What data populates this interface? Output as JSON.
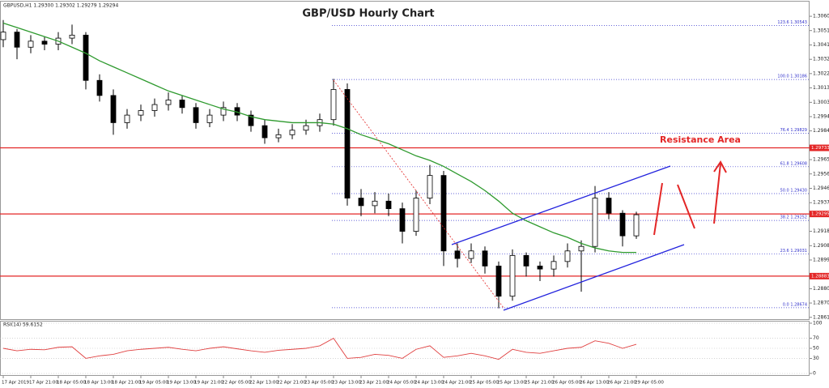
{
  "chart_data": [
    {
      "type": "candlestick",
      "title": "GBP/USD Hourly Chart",
      "header": "GBPUSD,H1  1.29300 1.29302 1.29279 1.29294",
      "annotation": "Resistance Area",
      "categories": [
        "17 Apr 2019",
        null,
        "17 Apr 21:00",
        null,
        "18 Apr 05:00",
        null,
        "18 Apr 13:00",
        null,
        "18 Apr 21:00",
        null,
        "19 Apr 05:00",
        null,
        "19 Apr 13:00",
        null,
        "19 Apr 21:00",
        null,
        "22 Apr 05:00",
        null,
        "22 Apr 13:00",
        null,
        "22 Apr 21:00",
        null,
        "23 Apr 05:00",
        null,
        "23 Apr 13:00",
        null,
        "23 Apr 21:00",
        null,
        "24 Apr 05:00",
        null,
        "24 Apr 13:00",
        null,
        "24 Apr 21:00",
        null,
        "25 Apr 05:00",
        null,
        "25 Apr 13:00",
        null,
        "25 Apr 21:00",
        null,
        "26 Apr 05:00",
        null,
        "26 Apr 13:00",
        null,
        "26 Apr 21:00",
        null,
        "29 Apr 05:00"
      ],
      "open": [
        1.3045,
        1.305,
        1.304,
        1.3044,
        1.3042,
        1.3046,
        1.3048,
        1.3018,
        1.3008,
        1.299,
        1.2995,
        1.2998,
        1.3002,
        1.3005,
        1.3,
        1.299,
        1.2995,
        1.3,
        1.2995,
        1.2988,
        1.298,
        1.2982,
        1.2985,
        1.2988,
        1.2992,
        1.3012,
        1.294,
        1.2935,
        1.2938,
        1.2933,
        1.2918,
        1.294,
        1.2955,
        1.2905,
        1.29,
        1.2905,
        1.2895,
        1.2875,
        1.2902,
        1.2895,
        1.2893,
        1.2898,
        1.2905,
        1.2908,
        1.294,
        1.293,
        1.2915
      ],
      "high": [
        1.3058,
        1.3052,
        1.3048,
        1.3047,
        1.305,
        1.3055,
        1.305,
        1.3022,
        1.3012,
        1.2999,
        1.3002,
        1.3006,
        1.301,
        1.3008,
        1.3003,
        1.2999,
        1.3004,
        1.3003,
        1.2998,
        1.2992,
        1.2986,
        1.2989,
        1.2992,
        1.2996,
        1.3019,
        1.3016,
        1.2946,
        1.2944,
        1.2943,
        1.2937,
        1.2945,
        1.2962,
        1.2958,
        1.291,
        1.291,
        1.2908,
        1.2898,
        1.2906,
        1.2904,
        1.2898,
        1.2902,
        1.291,
        1.2912,
        1.2948,
        1.2944,
        1.2932,
        1.2931
      ],
      "low": [
        1.304,
        1.3032,
        1.3036,
        1.3038,
        1.3038,
        1.3042,
        1.3012,
        1.3004,
        1.2982,
        1.2986,
        1.2991,
        1.2994,
        1.2998,
        1.2996,
        1.2986,
        1.2987,
        1.2991,
        1.2991,
        1.2984,
        1.2976,
        1.2977,
        1.2979,
        1.2982,
        1.2984,
        1.2988,
        1.2935,
        1.2928,
        1.293,
        1.2928,
        1.291,
        1.2915,
        1.2936,
        1.2895,
        1.2894,
        1.2897,
        1.289,
        1.2867,
        1.2872,
        1.2888,
        1.2885,
        1.2888,
        1.2894,
        1.2878,
        1.2904,
        1.2926,
        1.2908,
        1.2913
      ],
      "close": [
        1.305,
        1.304,
        1.3044,
        1.3042,
        1.3046,
        1.3048,
        1.3018,
        1.3008,
        1.299,
        1.2995,
        1.2998,
        1.3002,
        1.3005,
        1.3,
        1.299,
        1.2995,
        1.3,
        1.2995,
        1.2988,
        1.298,
        1.2982,
        1.2985,
        1.2988,
        1.2992,
        1.3012,
        1.294,
        1.2935,
        1.2938,
        1.2933,
        1.2918,
        1.294,
        1.2955,
        1.2905,
        1.29,
        1.2905,
        1.2895,
        1.2875,
        1.2902,
        1.2895,
        1.2893,
        1.2898,
        1.2905,
        1.2908,
        1.294,
        1.293,
        1.2915,
        1.2929
      ],
      "ma": {
        "color": "#2e9a2e",
        "values": [
          1.3056,
          1.3053,
          1.305,
          1.3047,
          1.3044,
          1.304,
          1.3036,
          1.3031,
          1.3027,
          1.3023,
          1.3019,
          1.3015,
          1.3011,
          1.3008,
          1.3005,
          1.3002,
          1.2999,
          1.2997,
          1.2994,
          1.2992,
          1.2991,
          1.299,
          1.299,
          1.299,
          1.2989,
          1.2986,
          1.2982,
          1.2979,
          1.2976,
          1.2972,
          1.2968,
          1.2965,
          1.2961,
          1.2956,
          1.2951,
          1.2945,
          1.2938,
          1.293,
          1.2925,
          1.2921,
          1.2917,
          1.2914,
          1.291,
          1.2907,
          1.2905,
          1.2904,
          1.2904
        ]
      },
      "fib_levels": [
        {
          "value": 1.30543,
          "label": "123.6 1.30543"
        },
        {
          "value": 1.30186,
          "label": "100.0 1.30186"
        },
        {
          "value": 1.29829,
          "label": "76.4 1.29829"
        },
        {
          "value": 1.29608,
          "label": "61.8 1.29608"
        },
        {
          "value": 1.2943,
          "label": "50.0 1.29430"
        },
        {
          "value": 1.29252,
          "label": "38.2 1.29252"
        },
        {
          "value": 1.29031,
          "label": "23.6 1.29031"
        },
        {
          "value": 1.28674,
          "label": "0.0 1.28674"
        }
      ],
      "fib_color": "#3333cc",
      "levels": [
        1.29733,
        1.29295,
        1.28883
      ],
      "level_color": "#e32626",
      "ylim": [
        1.28598,
        1.30702
      ],
      "yticks": [
        1.30605,
        {
          "value": 1.3051,
          "label": "1.30510"
        },
        1.30415,
        {
          "value": 1.3032,
          "label": "1.30320"
        },
        1.30225,
        {
          "value": 1.3013,
          "label": "1.30130"
        },
        1.30035,
        {
          "value": 1.2994,
          "label": "1.29940"
        },
        1.29845,
        1.29655,
        {
          "value": 1.2956,
          "label": "1.29560"
        },
        1.29465,
        {
          "value": 1.2937,
          "label": "1.29370"
        },
        {
          "value": 1.2918,
          "label": "1.29180"
        },
        1.29085,
        {
          "value": 1.2899,
          "label": "1.28990"
        },
        {
          "value": 1.288,
          "label": "1.28800"
        },
        1.28705,
        {
          "value": 1.2861,
          "label": "1.28610"
        }
      ]
    },
    {
      "type": "line",
      "label": "RSI(14) 59.6152",
      "color": "#e04040",
      "values": [
        50,
        45,
        48,
        47,
        52,
        53,
        30,
        35,
        38,
        45,
        48,
        50,
        52,
        48,
        45,
        50,
        53,
        49,
        45,
        42,
        46,
        48,
        50,
        55,
        70,
        30,
        32,
        38,
        36,
        30,
        48,
        55,
        32,
        35,
        40,
        35,
        28,
        48,
        42,
        40,
        45,
        50,
        52,
        65,
        60,
        50,
        58
      ],
      "ylim": [
        0,
        100
      ],
      "yticks": [
        100,
        70,
        50,
        30,
        0
      ]
    }
  ]
}
